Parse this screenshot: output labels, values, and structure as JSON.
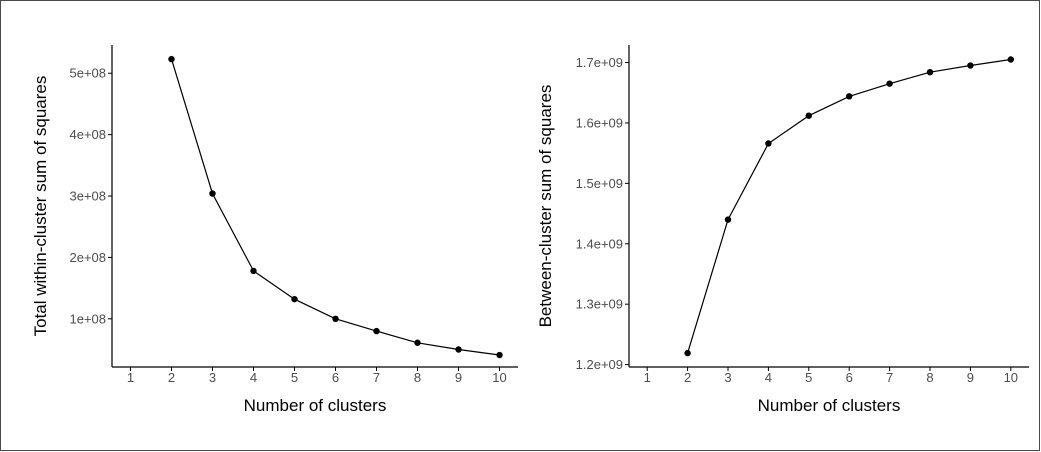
{
  "chart_data": [
    {
      "type": "line",
      "xlabel": "Number of clusters",
      "ylabel": "Total within-cluster sum of squares",
      "x_ticks": [
        "1",
        "2",
        "3",
        "4",
        "5",
        "6",
        "7",
        "8",
        "9",
        "10"
      ],
      "y_ticks": [
        {
          "value": 100000000,
          "label": "1e+08"
        },
        {
          "value": 200000000,
          "label": "2e+08"
        },
        {
          "value": 300000000,
          "label": "3e+08"
        },
        {
          "value": 400000000,
          "label": "4e+08"
        },
        {
          "value": 500000000,
          "label": "5e+08"
        }
      ],
      "xlim": [
        0.55,
        10.45
      ],
      "ylim": [
        21500000,
        546000000
      ],
      "x": [
        2,
        3,
        4,
        5,
        6,
        7,
        8,
        9,
        10
      ],
      "values": [
        523000000,
        304000000,
        178000000,
        132000000,
        100000000,
        80000000,
        61000000,
        50000000,
        41000000
      ],
      "grid": false,
      "colors": {
        "line": "#000000",
        "point": "#000000",
        "axis": "#000000",
        "tick_label": "#4d4d4d"
      }
    },
    {
      "type": "line",
      "xlabel": "Number of clusters",
      "ylabel": "Between-cluster sum of squares",
      "x_ticks": [
        "1",
        "2",
        "3",
        "4",
        "5",
        "6",
        "7",
        "8",
        "9",
        "10"
      ],
      "y_ticks": [
        {
          "value": 1200000000,
          "label": "1.2e+09"
        },
        {
          "value": 1300000000,
          "label": "1.3e+09"
        },
        {
          "value": 1400000000,
          "label": "1.4e+09"
        },
        {
          "value": 1500000000,
          "label": "1.5e+09"
        },
        {
          "value": 1600000000,
          "label": "1.6e+09"
        },
        {
          "value": 1700000000,
          "label": "1.7e+09"
        }
      ],
      "xlim": [
        0.55,
        10.45
      ],
      "ylim": [
        1196000000,
        1729000000
      ],
      "x": [
        2,
        3,
        4,
        5,
        6,
        7,
        8,
        9,
        10
      ],
      "values": [
        1219000000,
        1440000000,
        1566000000,
        1612000000,
        1644000000,
        1665000000,
        1684000000,
        1695000000,
        1705000000
      ],
      "grid": false,
      "colors": {
        "line": "#000000",
        "point": "#000000",
        "axis": "#000000",
        "tick_label": "#4d4d4d"
      }
    }
  ]
}
